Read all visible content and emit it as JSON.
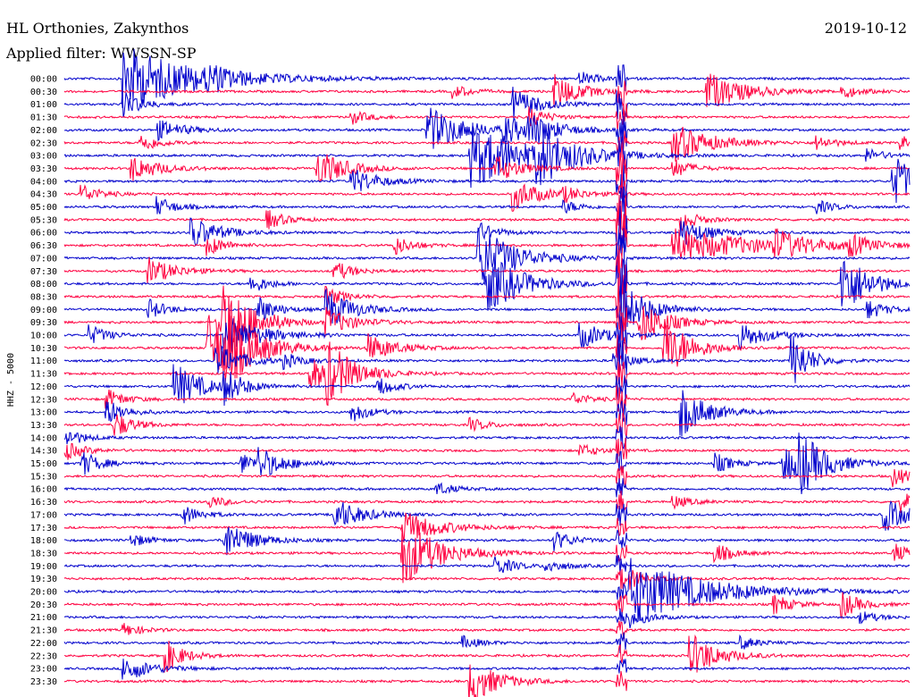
{
  "header": {
    "station": "HL Orthonies, Zakynthos",
    "filter": "Applied filter: WWSSN-SP",
    "date": "2019-10-12"
  },
  "chart_data": {
    "type": "line",
    "title": "HL Orthonies, Zakynthos",
    "subtitle": "Applied filter: WWSSN-SP",
    "date": "2019-10-12",
    "ylabel": "HHZ - 5000",
    "colors": [
      "#0000cc",
      "#ff0040"
    ],
    "grid": false,
    "rows": [
      "00:00",
      "00:30",
      "01:00",
      "01:30",
      "02:00",
      "02:30",
      "03:00",
      "03:30",
      "04:00",
      "04:30",
      "05:00",
      "05:30",
      "06:00",
      "06:30",
      "07:00",
      "07:30",
      "08:00",
      "08:30",
      "09:00",
      "09:30",
      "10:00",
      "10:30",
      "11:00",
      "11:30",
      "12:00",
      "12:30",
      "13:00",
      "13:30",
      "14:00",
      "14:30",
      "15:00",
      "15:30",
      "16:00",
      "16:30",
      "17:00",
      "17:30",
      "18:00",
      "18:30",
      "19:00",
      "19:30",
      "20:00",
      "20:30",
      "21:00",
      "21:30",
      "22:00",
      "22:30",
      "23:00",
      "23:30"
    ],
    "events": [
      {
        "row": 0,
        "t": 0.07,
        "amp": 1.0,
        "decay": 0.08
      },
      {
        "row": 0,
        "t": 0.17,
        "amp": 0.25,
        "decay": 0.02
      },
      {
        "row": 0,
        "t": 0.61,
        "amp": 0.2,
        "decay": 0.02
      },
      {
        "row": 1,
        "t": 0.46,
        "amp": 0.2,
        "decay": 0.02
      },
      {
        "row": 1,
        "t": 0.58,
        "amp": 0.5,
        "decay": 0.03
      },
      {
        "row": 1,
        "t": 0.76,
        "amp": 0.6,
        "decay": 0.04
      },
      {
        "row": 1,
        "t": 0.92,
        "amp": 0.2,
        "decay": 0.02
      },
      {
        "row": 2,
        "t": 0.07,
        "amp": 0.4,
        "decay": 0.02
      },
      {
        "row": 2,
        "t": 0.53,
        "amp": 0.5,
        "decay": 0.03
      },
      {
        "row": 3,
        "t": 0.34,
        "amp": 0.2,
        "decay": 0.02
      },
      {
        "row": 3,
        "t": 0.55,
        "amp": 0.3,
        "decay": 0.02
      },
      {
        "row": 4,
        "t": 0.11,
        "amp": 0.3,
        "decay": 0.03
      },
      {
        "row": 4,
        "t": 0.43,
        "amp": 0.7,
        "decay": 0.04
      },
      {
        "row": 4,
        "t": 0.52,
        "amp": 0.4,
        "decay": 0.03
      },
      {
        "row": 4,
        "t": 0.55,
        "amp": 0.4,
        "decay": 0.03
      },
      {
        "row": 5,
        "t": 0.09,
        "amp": 0.3,
        "decay": 0.02
      },
      {
        "row": 5,
        "t": 0.72,
        "amp": 0.6,
        "decay": 0.04
      },
      {
        "row": 5,
        "t": 0.89,
        "amp": 0.2,
        "decay": 0.02
      },
      {
        "row": 5,
        "t": 0.99,
        "amp": 0.2,
        "decay": 0.02
      },
      {
        "row": 6,
        "t": 0.48,
        "amp": 1.0,
        "decay": 0.06
      },
      {
        "row": 6,
        "t": 0.56,
        "amp": 0.7,
        "decay": 0.04
      },
      {
        "row": 6,
        "t": 0.95,
        "amp": 0.2,
        "decay": 0.02
      },
      {
        "row": 7,
        "t": 0.08,
        "amp": 0.4,
        "decay": 0.03
      },
      {
        "row": 7,
        "t": 0.3,
        "amp": 0.6,
        "decay": 0.03
      },
      {
        "row": 7,
        "t": 0.51,
        "amp": 0.4,
        "decay": 0.03
      },
      {
        "row": 7,
        "t": 0.72,
        "amp": 0.3,
        "decay": 0.02
      },
      {
        "row": 8,
        "t": 0.34,
        "amp": 0.4,
        "decay": 0.03
      },
      {
        "row": 8,
        "t": 0.98,
        "amp": 0.8,
        "decay": 0.03
      },
      {
        "row": 9,
        "t": 0.02,
        "amp": 0.3,
        "decay": 0.02
      },
      {
        "row": 9,
        "t": 0.53,
        "amp": 0.5,
        "decay": 0.03
      },
      {
        "row": 9,
        "t": 0.59,
        "amp": 0.2,
        "decay": 0.02
      },
      {
        "row": 10,
        "t": 0.11,
        "amp": 0.3,
        "decay": 0.02
      },
      {
        "row": 10,
        "t": 0.59,
        "amp": 0.2,
        "decay": 0.02
      },
      {
        "row": 10,
        "t": 0.89,
        "amp": 0.2,
        "decay": 0.02
      },
      {
        "row": 11,
        "t": 0.24,
        "amp": 0.3,
        "decay": 0.02
      },
      {
        "row": 11,
        "t": 0.73,
        "amp": 0.3,
        "decay": 0.02
      },
      {
        "row": 12,
        "t": 0.15,
        "amp": 0.5,
        "decay": 0.03
      },
      {
        "row": 12,
        "t": 0.49,
        "amp": 0.3,
        "decay": 0.02
      },
      {
        "row": 12,
        "t": 0.73,
        "amp": 0.4,
        "decay": 0.03
      },
      {
        "row": 13,
        "t": 0.17,
        "amp": 0.3,
        "decay": 0.02
      },
      {
        "row": 13,
        "t": 0.39,
        "amp": 0.3,
        "decay": 0.02
      },
      {
        "row": 13,
        "t": 0.72,
        "amp": 0.5,
        "decay": 0.1
      },
      {
        "row": 13,
        "t": 0.84,
        "amp": 0.4,
        "decay": 0.03
      },
      {
        "row": 13,
        "t": 0.93,
        "amp": 0.3,
        "decay": 0.02
      },
      {
        "row": 14,
        "t": 0.49,
        "amp": 1.0,
        "decay": 0.04
      },
      {
        "row": 15,
        "t": 0.1,
        "amp": 0.4,
        "decay": 0.03
      },
      {
        "row": 15,
        "t": 0.32,
        "amp": 0.3,
        "decay": 0.02
      },
      {
        "row": 16,
        "t": 0.22,
        "amp": 0.3,
        "decay": 0.02
      },
      {
        "row": 16,
        "t": 0.5,
        "amp": 0.9,
        "decay": 0.04
      },
      {
        "row": 16,
        "t": 0.92,
        "amp": 1.0,
        "decay": 0.03
      },
      {
        "row": 17,
        "t": 0.31,
        "amp": 0.3,
        "decay": 0.02
      },
      {
        "row": 18,
        "t": 0.1,
        "amp": 0.3,
        "decay": 0.02
      },
      {
        "row": 18,
        "t": 0.23,
        "amp": 0.4,
        "decay": 0.02
      },
      {
        "row": 18,
        "t": 0.31,
        "amp": 0.6,
        "decay": 0.03
      },
      {
        "row": 18,
        "t": 0.66,
        "amp": 0.8,
        "decay": 0.03
      },
      {
        "row": 18,
        "t": 0.95,
        "amp": 0.3,
        "decay": 0.02
      },
      {
        "row": 19,
        "t": 0.18,
        "amp": 0.9,
        "decay": 0.03
      },
      {
        "row": 19,
        "t": 0.19,
        "amp": 0.8,
        "decay": 0.03
      },
      {
        "row": 19,
        "t": 0.31,
        "amp": 0.4,
        "decay": 0.03
      },
      {
        "row": 19,
        "t": 0.68,
        "amp": 0.7,
        "decay": 0.03
      },
      {
        "row": 20,
        "t": 0.03,
        "amp": 0.3,
        "decay": 0.02
      },
      {
        "row": 20,
        "t": 0.19,
        "amp": 0.6,
        "decay": 0.04
      },
      {
        "row": 20,
        "t": 0.61,
        "amp": 0.4,
        "decay": 0.03
      },
      {
        "row": 20,
        "t": 0.8,
        "amp": 0.4,
        "decay": 0.03
      },
      {
        "row": 21,
        "t": 0.17,
        "amp": 1.0,
        "decay": 0.04
      },
      {
        "row": 21,
        "t": 0.19,
        "amp": 0.7,
        "decay": 0.03
      },
      {
        "row": 21,
        "t": 0.36,
        "amp": 0.4,
        "decay": 0.03
      },
      {
        "row": 21,
        "t": 0.71,
        "amp": 0.9,
        "decay": 0.03
      },
      {
        "row": 22,
        "t": 0.18,
        "amp": 0.5,
        "decay": 0.03
      },
      {
        "row": 22,
        "t": 0.26,
        "amp": 0.2,
        "decay": 0.02
      },
      {
        "row": 22,
        "t": 0.65,
        "amp": 0.3,
        "decay": 0.02
      },
      {
        "row": 22,
        "t": 0.86,
        "amp": 0.9,
        "decay": 0.02
      },
      {
        "row": 23,
        "t": 0.29,
        "amp": 0.5,
        "decay": 0.03
      },
      {
        "row": 23,
        "t": 0.31,
        "amp": 0.8,
        "decay": 0.03
      },
      {
        "row": 24,
        "t": 0.13,
        "amp": 0.7,
        "decay": 0.03
      },
      {
        "row": 24,
        "t": 0.19,
        "amp": 0.5,
        "decay": 0.02
      },
      {
        "row": 24,
        "t": 0.37,
        "amp": 0.3,
        "decay": 0.02
      },
      {
        "row": 25,
        "t": 0.05,
        "amp": 0.3,
        "decay": 0.02
      },
      {
        "row": 25,
        "t": 0.6,
        "amp": 0.2,
        "decay": 0.02
      },
      {
        "row": 26,
        "t": 0.05,
        "amp": 0.4,
        "decay": 0.02
      },
      {
        "row": 26,
        "t": 0.34,
        "amp": 0.3,
        "decay": 0.02
      },
      {
        "row": 26,
        "t": 0.73,
        "amp": 0.7,
        "decay": 0.03
      },
      {
        "row": 27,
        "t": 0.06,
        "amp": 0.4,
        "decay": 0.02
      },
      {
        "row": 27,
        "t": 0.48,
        "amp": 0.2,
        "decay": 0.02
      },
      {
        "row": 28,
        "t": 0.0,
        "amp": 0.3,
        "decay": 0.02
      },
      {
        "row": 29,
        "t": 0.0,
        "amp": 0.3,
        "decay": 0.02
      },
      {
        "row": 29,
        "t": 0.61,
        "amp": 0.2,
        "decay": 0.02
      },
      {
        "row": 30,
        "t": 0.02,
        "amp": 0.4,
        "decay": 0.02
      },
      {
        "row": 30,
        "t": 0.21,
        "amp": 0.3,
        "decay": 0.02
      },
      {
        "row": 30,
        "t": 0.23,
        "amp": 0.4,
        "decay": 0.03
      },
      {
        "row": 30,
        "t": 0.77,
        "amp": 0.3,
        "decay": 0.02
      },
      {
        "row": 30,
        "t": 0.85,
        "amp": 0.6,
        "decay": 0.03
      },
      {
        "row": 30,
        "t": 0.87,
        "amp": 0.7,
        "decay": 0.03
      },
      {
        "row": 31,
        "t": 0.98,
        "amp": 0.3,
        "decay": 0.02
      },
      {
        "row": 32,
        "t": 0.44,
        "amp": 0.2,
        "decay": 0.02
      },
      {
        "row": 33,
        "t": 0.17,
        "amp": 0.2,
        "decay": 0.02
      },
      {
        "row": 33,
        "t": 0.72,
        "amp": 0.2,
        "decay": 0.02
      },
      {
        "row": 33,
        "t": 0.99,
        "amp": 0.3,
        "decay": 0.02
      },
      {
        "row": 34,
        "t": 0.14,
        "amp": 0.3,
        "decay": 0.02
      },
      {
        "row": 34,
        "t": 0.32,
        "amp": 0.5,
        "decay": 0.03
      },
      {
        "row": 34,
        "t": 0.97,
        "amp": 0.5,
        "decay": 0.03
      },
      {
        "row": 35,
        "t": 0.4,
        "amp": 0.5,
        "decay": 0.04
      },
      {
        "row": 36,
        "t": 0.08,
        "amp": 0.2,
        "decay": 0.02
      },
      {
        "row": 36,
        "t": 0.19,
        "amp": 0.6,
        "decay": 0.03
      },
      {
        "row": 36,
        "t": 0.58,
        "amp": 0.3,
        "decay": 0.02
      },
      {
        "row": 37,
        "t": 0.4,
        "amp": 1.0,
        "decay": 0.04
      },
      {
        "row": 37,
        "t": 0.77,
        "amp": 0.3,
        "decay": 0.02
      },
      {
        "row": 37,
        "t": 0.98,
        "amp": 0.3,
        "decay": 0.02
      },
      {
        "row": 38,
        "t": 0.51,
        "amp": 0.3,
        "decay": 0.02
      },
      {
        "row": 38,
        "t": 0.57,
        "amp": 0.2,
        "decay": 0.02
      },
      {
        "row": 39,
        "t": 0.67,
        "amp": 0.3,
        "decay": 0.02
      },
      {
        "row": 40,
        "t": 0.67,
        "amp": 1.0,
        "decay": 0.08
      },
      {
        "row": 41,
        "t": 0.84,
        "amp": 0.3,
        "decay": 0.02
      },
      {
        "row": 41,
        "t": 0.92,
        "amp": 0.4,
        "decay": 0.02
      },
      {
        "row": 42,
        "t": 0.67,
        "amp": 0.3,
        "decay": 0.02
      },
      {
        "row": 42,
        "t": 0.94,
        "amp": 0.2,
        "decay": 0.02
      },
      {
        "row": 43,
        "t": 0.07,
        "amp": 0.2,
        "decay": 0.02
      },
      {
        "row": 44,
        "t": 0.47,
        "amp": 0.2,
        "decay": 0.02
      },
      {
        "row": 44,
        "t": 0.8,
        "amp": 0.2,
        "decay": 0.02
      },
      {
        "row": 45,
        "t": 0.12,
        "amp": 0.5,
        "decay": 0.02
      },
      {
        "row": 45,
        "t": 0.74,
        "amp": 0.7,
        "decay": 0.03
      },
      {
        "row": 46,
        "t": 0.07,
        "amp": 0.4,
        "decay": 0.03
      },
      {
        "row": 47,
        "t": 0.48,
        "amp": 0.7,
        "decay": 0.03
      }
    ],
    "teleseism": {
      "t": 0.659,
      "start_row": 0,
      "end_row": 47,
      "peak_row": 13
    }
  }
}
